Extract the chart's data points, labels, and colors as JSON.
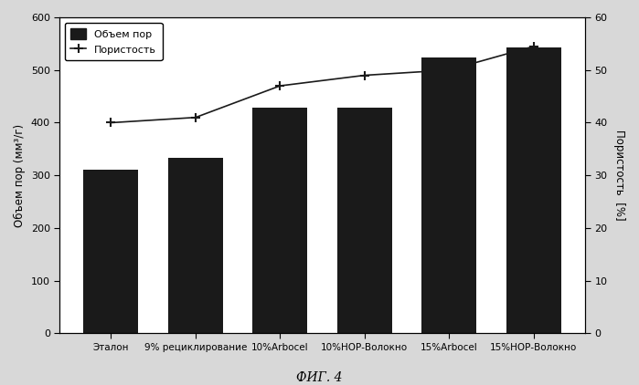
{
  "categories": [
    "Эталон",
    "9% рециклирование",
    "10%Arbocel",
    "10%НОР-Волокно",
    "15%Arbocel",
    "15%НОР-Волокно"
  ],
  "bar_values": [
    310,
    333,
    428,
    428,
    524,
    543
  ],
  "line_values": [
    40.0,
    41.0,
    47.0,
    49.0,
    50.0,
    54.5
  ],
  "bar_color": "#1a1a1a",
  "line_color": "#1a1a1a",
  "ylabel_left": "Объем пор (мм³/г)",
  "ylabel_right": "Пористость  [%]",
  "ylim_left": [
    0,
    600
  ],
  "ylim_right": [
    0,
    60
  ],
  "yticks_left": [
    0,
    100,
    200,
    300,
    400,
    500,
    600
  ],
  "yticks_right": [
    0,
    10,
    20,
    30,
    40,
    50,
    60
  ],
  "legend_bar": "Объем пор",
  "legend_line": "Пористость",
  "caption": "ФИГ. 4",
  "bg_color": "#ffffff",
  "figure_bg": "#d8d8d8",
  "figure_width": 6.99,
  "figure_height": 4.22,
  "dpi": 100
}
